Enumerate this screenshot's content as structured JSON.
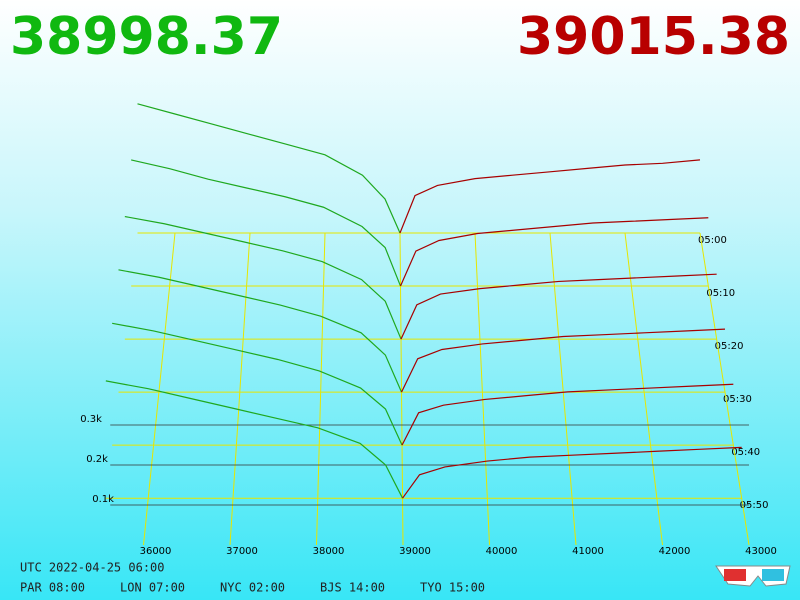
{
  "chart_data": {
    "type": "depth3d",
    "best_bid": 38998.37,
    "best_ask": 39015.38,
    "bid_color": "#1fa81f",
    "ask_color": "#a80000",
    "grid_color": "#e6e600",
    "bid_prices": [
      35500,
      36000,
      36500,
      37000,
      37500,
      38000,
      38500,
      38800,
      39000
    ],
    "ask_prices": [
      39000,
      39200,
      39500,
      40000,
      40500,
      41000,
      41500,
      42000,
      42500,
      43000
    ],
    "times": [
      "05:00",
      "05:10",
      "05:20",
      "05:30",
      "05:40",
      "05:50"
    ],
    "snapshots": [
      {
        "bids": [
          380,
          350,
          320,
          290,
          260,
          230,
          170,
          100,
          0
        ],
        "asks": [
          0,
          110,
          140,
          160,
          170,
          180,
          190,
          200,
          205,
          215
        ]
      },
      {
        "bids": [
          360,
          335,
          305,
          280,
          255,
          225,
          170,
          110,
          0
        ],
        "asks": [
          0,
          100,
          130,
          150,
          160,
          170,
          180,
          185,
          190,
          195
        ]
      },
      {
        "bids": [
          340,
          320,
          295,
          270,
          245,
          215,
          165,
          105,
          0
        ],
        "asks": [
          0,
          95,
          125,
          140,
          150,
          160,
          165,
          170,
          175,
          180
        ]
      },
      {
        "bids": [
          330,
          310,
          285,
          260,
          235,
          205,
          160,
          100,
          0
        ],
        "asks": [
          0,
          90,
          115,
          130,
          140,
          150,
          155,
          160,
          165,
          170
        ]
      },
      {
        "bids": [
          320,
          300,
          275,
          250,
          225,
          195,
          150,
          95,
          0
        ],
        "asks": [
          0,
          85,
          105,
          120,
          130,
          140,
          145,
          150,
          155,
          160
        ]
      },
      {
        "bids": [
          300,
          280,
          255,
          230,
          205,
          180,
          140,
          85,
          0
        ],
        "asks": [
          0,
          60,
          80,
          95,
          105,
          110,
          115,
          120,
          125,
          130
        ]
      }
    ],
    "xticks": [
      36000,
      37000,
      38000,
      39000,
      40000,
      41000,
      42000,
      43000
    ],
    "vticks": [
      {
        "value": 100,
        "label": "0.1k"
      },
      {
        "value": 200,
        "label": "0.2k"
      },
      {
        "value": 300,
        "label": "0.3k"
      }
    ],
    "footer": {
      "utc": "UTC 2022-04-25 06:00",
      "zones": [
        "PAR 08:00",
        "LON 07:00",
        "NYC 02:00",
        "BJS 14:00",
        "TYO 15:00"
      ]
    }
  }
}
